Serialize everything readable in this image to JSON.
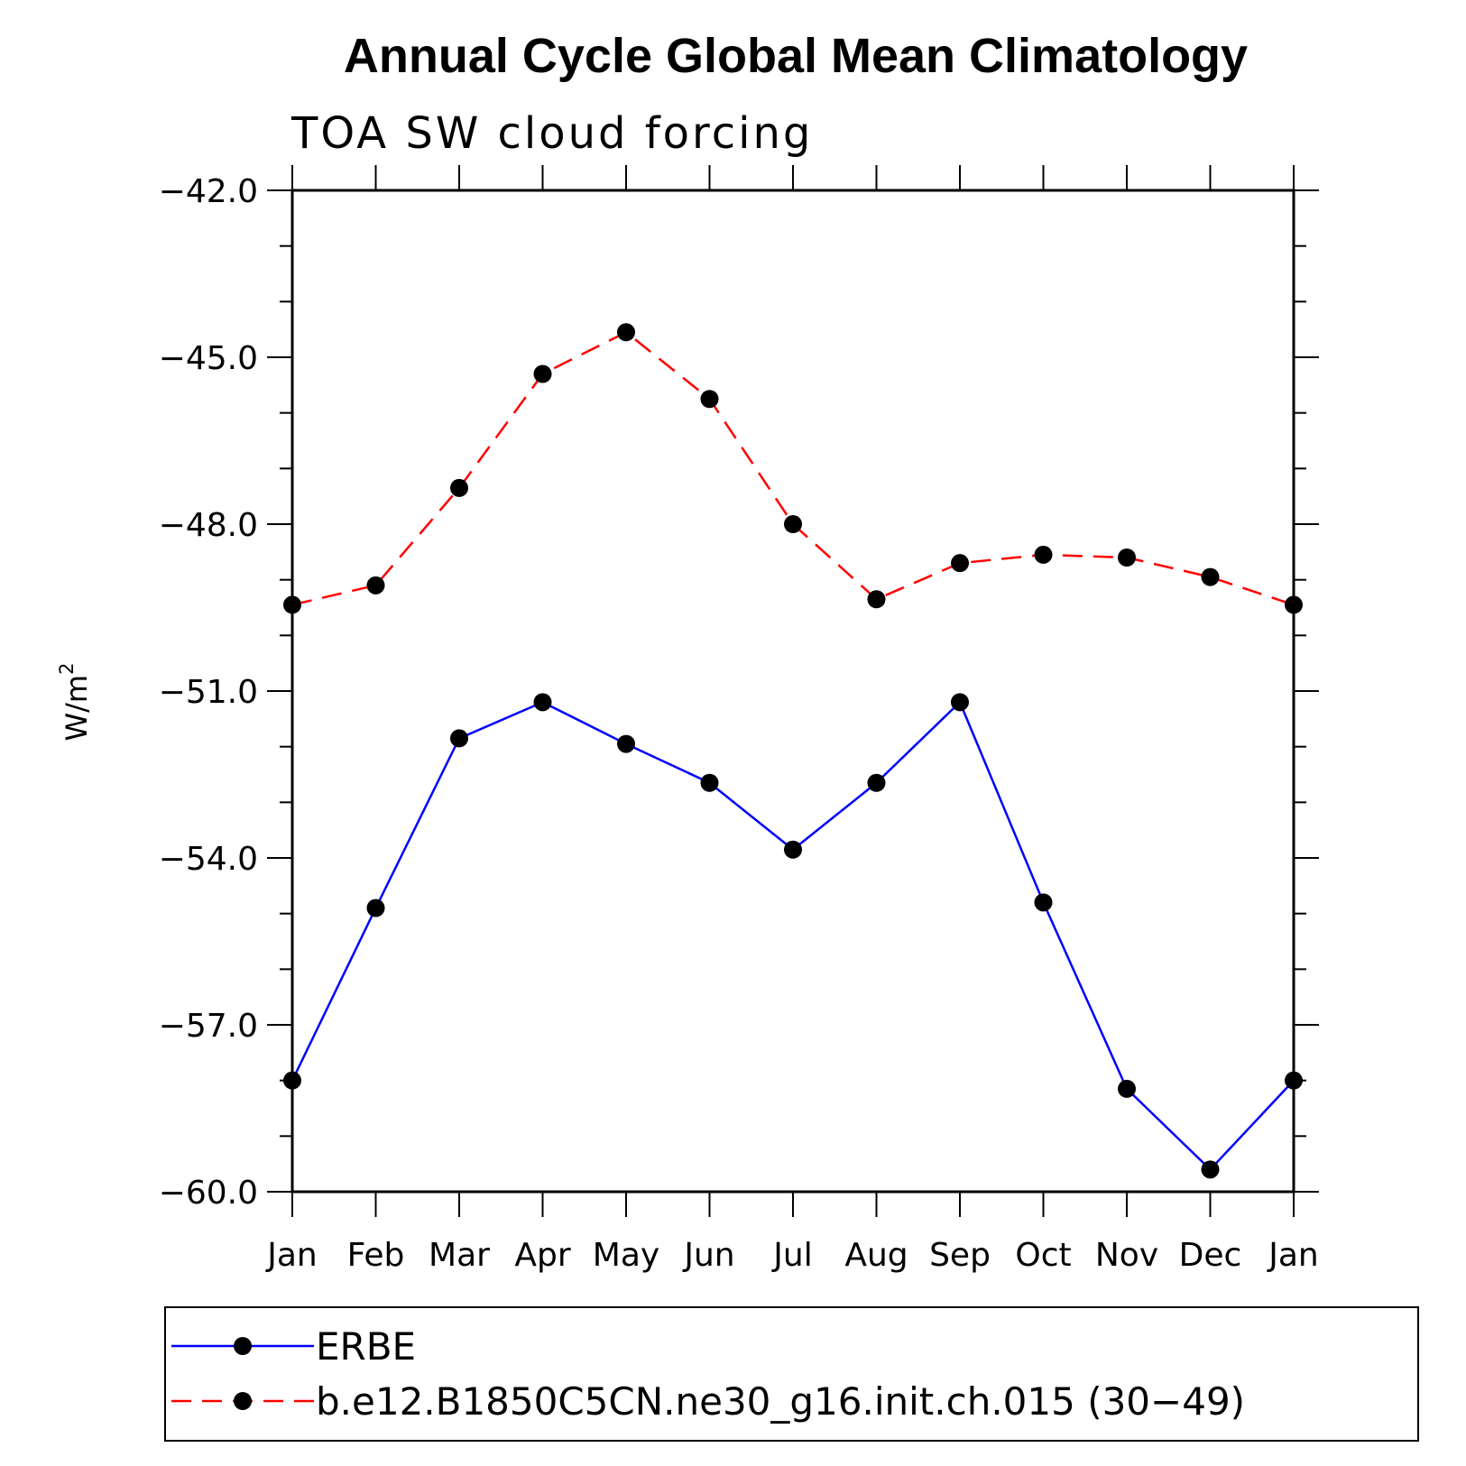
{
  "chart_data": {
    "type": "line",
    "title": "Annual Cycle Global Mean Climatology",
    "subtitle": "TOA SW cloud forcing",
    "xlabel": "",
    "ylabel": "W/m",
    "ylabel_superscript": "2",
    "categories": [
      "Jan",
      "Feb",
      "Mar",
      "Apr",
      "May",
      "Jun",
      "Jul",
      "Aug",
      "Sep",
      "Oct",
      "Nov",
      "Dec",
      "Jan"
    ],
    "ylim": [
      -60.0,
      -42.0
    ],
    "yticks": [
      -60.0,
      -57.0,
      -54.0,
      -51.0,
      -48.0,
      -45.0,
      -42.0
    ],
    "ytick_labels": [
      "−60.0",
      "−57.0",
      "−54.0",
      "−51.0",
      "−48.0",
      "−45.0",
      "−42.0"
    ],
    "grid": false,
    "legend_position": "bottom",
    "series": [
      {
        "name": "ERBE",
        "color": "#0000ff",
        "line_style": "solid",
        "marker": "filled-circle",
        "values": [
          -58.0,
          -54.9,
          -51.85,
          -51.2,
          -51.95,
          -52.65,
          -53.85,
          -52.65,
          -51.2,
          -54.8,
          -58.15,
          -59.6,
          -58.0
        ]
      },
      {
        "name": "b.e12.B1850C5CN.ne30_g16.init.ch.015 (30−49)",
        "color": "#ff0000",
        "line_style": "dashed",
        "marker": "filled-circle",
        "values": [
          -49.45,
          -49.1,
          -47.35,
          -45.3,
          -44.55,
          -45.75,
          -48.0,
          -49.35,
          -48.7,
          -48.55,
          -48.6,
          -48.95,
          -49.45
        ]
      }
    ]
  }
}
